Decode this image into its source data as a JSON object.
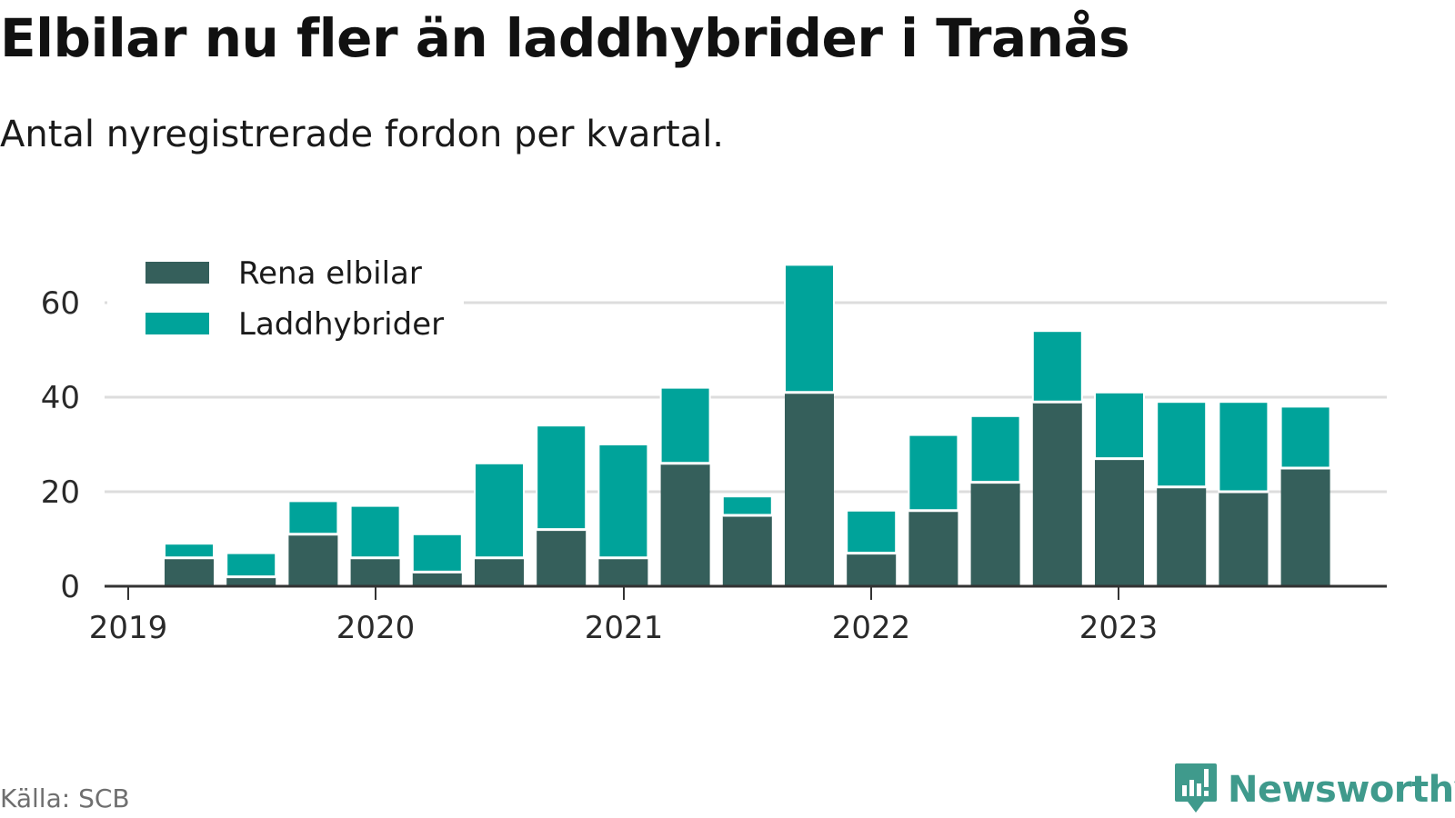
{
  "header": {
    "title": "Elbilar nu fler än laddhybrider i Tranås",
    "subtitle": "Antal nyregistrerade fordon per kvartal."
  },
  "footer": {
    "source": "Källa: SCB",
    "brand": "Newsworthy"
  },
  "colors": {
    "electric": "#355f5b",
    "hybrid": "#00a39a",
    "grid": "#dddddd",
    "axis": "#333333",
    "brand": "#3f9a8c"
  },
  "chart_data": {
    "type": "bar",
    "stacked": true,
    "title": "Elbilar nu fler än laddhybrider i Tranås",
    "subtitle": "Antal nyregistrerade fordon per kvartal.",
    "xlabel": "",
    "ylabel": "",
    "ylim": [
      0,
      70
    ],
    "yticks": [
      0,
      20,
      40,
      60
    ],
    "grid": true,
    "legend_position": "top-left",
    "x_tick_labels": [
      "2019",
      "2020",
      "2021",
      "2022",
      "2023"
    ],
    "categories": [
      "2019 Q2",
      "2019 Q3",
      "2019 Q4",
      "2020 Q1",
      "2020 Q2",
      "2020 Q3",
      "2020 Q4",
      "2021 Q1",
      "2021 Q2",
      "2021 Q3",
      "2021 Q4",
      "2022 Q1",
      "2022 Q2",
      "2022 Q3",
      "2022 Q4",
      "2023 Q1",
      "2023 Q2",
      "2023 Q3",
      "2023 Q4"
    ],
    "series": [
      {
        "name": "Rena elbilar",
        "values": [
          6,
          2,
          11,
          6,
          3,
          6,
          12,
          6,
          26,
          15,
          41,
          7,
          16,
          22,
          39,
          27,
          21,
          20,
          25
        ]
      },
      {
        "name": "Laddhybrider",
        "values": [
          3,
          5,
          7,
          11,
          8,
          20,
          22,
          24,
          16,
          4,
          27,
          9,
          16,
          14,
          15,
          14,
          18,
          19,
          13
        ]
      }
    ]
  }
}
